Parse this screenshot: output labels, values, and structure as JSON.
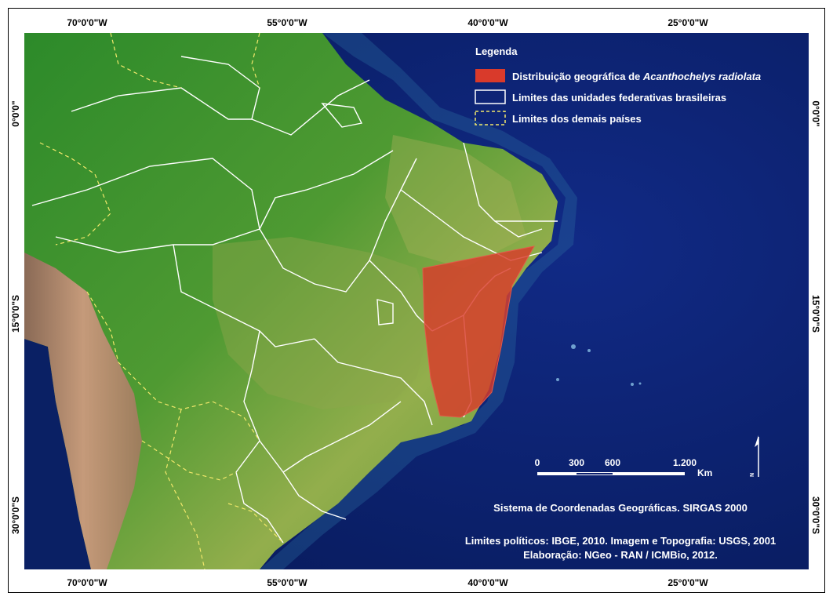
{
  "axes": {
    "top": [
      "70°0'0\"W",
      "55°0'0\"W",
      "40°0'0\"W",
      "25°0'0\"W"
    ],
    "bottom": [
      "70°0'0\"W",
      "55°0'0\"W",
      "40°0'0\"W",
      "25°0'0\"W"
    ],
    "left": [
      "0°0'0\"",
      "15°0'0\"S",
      "30°0'0\"S"
    ],
    "right": [
      "0°0'0\"",
      "15°0'0\"S",
      "30°0'0\"S"
    ]
  },
  "legend": {
    "title": "Legenda",
    "items": [
      {
        "label_prefix": "Distribuição geográfica de ",
        "label_italic": "Acanthochelys radiolata",
        "swatch": "fill",
        "color": "#d93a2b"
      },
      {
        "label_prefix": "Limites das unidades federativas brasileiras",
        "label_italic": "",
        "swatch": "solid-outline",
        "color": "#ffffff"
      },
      {
        "label_prefix": "Limites dos demais países",
        "label_italic": "",
        "swatch": "dashed-outline",
        "color": "#f2e86b"
      }
    ]
  },
  "scale_bar": {
    "labels": [
      "0",
      "300",
      "600",
      "1.200"
    ],
    "unit": "Km"
  },
  "north_arrow": {
    "label": "N"
  },
  "credits": {
    "crs": "Sistema de Coordenadas Geográficas. SIRGAS 2000",
    "sources": "Limites políticos: IBGE, 2010. Imagem e Topografia: USGS, 2001",
    "author": "Elaboração: NGeo - RAN / ICMBio, 2012."
  },
  "colors": {
    "ocean": "#0b1f6e",
    "forest": "#2f8f2a",
    "cerrado": "#8fb046",
    "andes": "#b98a6c",
    "distribution": "#d93a2b"
  }
}
